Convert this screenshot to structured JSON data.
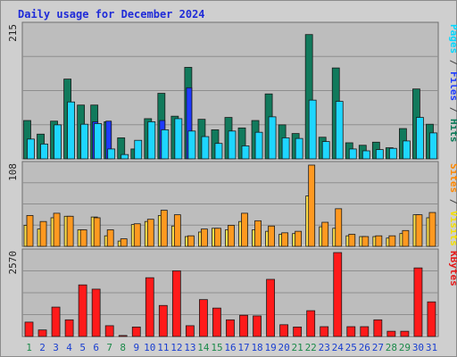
{
  "chart_data": {
    "type": "bar",
    "title": "Daily usage for December 2024",
    "categories": [
      "1",
      "2",
      "3",
      "4",
      "5",
      "6",
      "7",
      "8",
      "9",
      "10",
      "11",
      "12",
      "13",
      "14",
      "15",
      "16",
      "17",
      "18",
      "19",
      "20",
      "21",
      "22",
      "23",
      "24",
      "25",
      "26",
      "27",
      "28",
      "29",
      "30",
      "31"
    ],
    "weekend_days": [
      "1",
      "7",
      "8",
      "14",
      "15",
      "21",
      "22",
      "28",
      "29"
    ],
    "day_colors": {
      "weekday": "#1a3fd0",
      "weekend": "#1c8a4a"
    },
    "panels": [
      {
        "id": "hits-files-pages",
        "y_max_label": "215",
        "y_max": 215,
        "right_label": [
          {
            "text": "Pages",
            "color": "#00d8ff"
          },
          {
            "text": " / ",
            "color": "#444444"
          },
          {
            "text": "Files",
            "color": "#1e3cff"
          },
          {
            "text": " / ",
            "color": "#444444"
          },
          {
            "text": "Hits",
            "color": "#0a7a58"
          }
        ],
        "series": [
          {
            "name": "Hits",
            "color": "#117a5c",
            "values": [
              62,
              40,
              61,
              129,
              87,
              87,
              60,
              34,
              16,
              65,
              106,
              69,
              148,
              64,
              47,
              67,
              50,
              62,
              105,
              55,
              41,
              201,
              35,
              147,
              26,
              22,
              27,
              18,
              49,
              113,
              56
            ]
          },
          {
            "name": "Files",
            "color": "#1f3bff",
            "values": [
              0,
              0,
              0,
              0,
              0,
              60,
              61,
              0,
              0,
              0,
              62,
              0,
              115,
              0,
              0,
              0,
              0,
              0,
              0,
              0,
              0,
              0,
              0,
              0,
              0,
              0,
              0,
              0,
              0,
              0,
              0
            ]
          },
          {
            "name": "Pages",
            "color": "#1ed6ff",
            "values": [
              32,
              24,
              55,
              92,
              56,
              57,
              16,
              7,
              30,
              60,
              47,
              65,
              45,
              36,
              25,
              45,
              21,
              43,
              68,
              34,
              33,
              95,
              28,
              93,
              16,
              13,
              15,
              17,
              29,
              67,
              42
            ]
          }
        ]
      },
      {
        "id": "visits-sites",
        "y_max_label": "108",
        "y_max": 108,
        "right_label": [
          {
            "text": "Sites",
            "color": "#ff8800"
          },
          {
            "text": " / ",
            "color": "#444444"
          },
          {
            "text": "Visits",
            "color": "#f4e000"
          }
        ],
        "series": [
          {
            "name": "Visits",
            "color": "#ffe04a",
            "values": [
              28,
              23,
              38,
              40,
              22,
              39,
              14,
              7,
              29,
              33,
              41,
              27,
              13,
              19,
              24,
              22,
              33,
              22,
              20,
              16,
              17,
              67,
              26,
              24,
              14,
              13,
              13,
              11,
              17,
              42,
              38
            ]
          },
          {
            "name": "Sites",
            "color": "#ff9920",
            "values": [
              41,
              33,
              44,
              40,
              22,
              38,
              22,
              10,
              30,
              36,
              48,
              42,
              14,
              23,
              24,
              28,
              44,
              34,
              27,
              18,
              20,
              108,
              32,
              50,
              16,
              13,
              14,
              14,
              21,
              42,
              45
            ]
          }
        ]
      },
      {
        "id": "kbytes",
        "y_max_label": "2570",
        "y_max": 2570,
        "right_label": [
          {
            "text": "KBytes",
            "color": "#e51a1a"
          }
        ],
        "series": [
          {
            "name": "KBytes",
            "color": "#ff1a1a",
            "values": [
              440,
              200,
              900,
              510,
              1580,
              1450,
              330,
              30,
              290,
              1800,
              950,
              2010,
              330,
              1130,
              870,
              510,
              650,
              630,
              1750,
              360,
              290,
              790,
              300,
              2570,
              300,
              300,
              510,
              160,
              160,
              2100,
              1060
            ]
          }
        ]
      }
    ]
  }
}
